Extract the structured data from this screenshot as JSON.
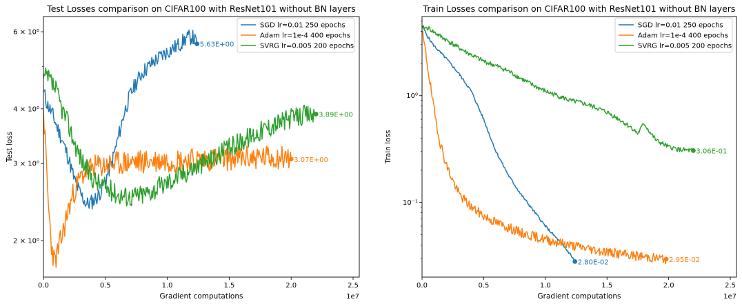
{
  "chart_data": [
    {
      "type": "line",
      "title": "Test Losses comparison on CIFAR100 with ResNet101 without BN layers",
      "xlabel": "Gradient computations",
      "ylabel": "Test loss",
      "x_offset_label": "1e7",
      "xlim": [
        0,
        25500000
      ],
      "ylim": [
        1.65,
        6.5
      ],
      "yscale": "log",
      "grid": false,
      "legend_position": "upper-right",
      "x_ticks": [
        {
          "v": 0,
          "label": "0.0"
        },
        {
          "v": 5000000,
          "label": "0.5"
        },
        {
          "v": 10000000,
          "label": "1.0"
        },
        {
          "v": 15000000,
          "label": "1.5"
        },
        {
          "v": 20000000,
          "label": "2.0"
        },
        {
          "v": 25000000,
          "label": "2.5"
        }
      ],
      "y_ticks": [
        {
          "v": 2,
          "label": "2 × 10⁰"
        },
        {
          "v": 3,
          "label": "3 × 10⁰"
        },
        {
          "v": 4,
          "label": "4 × 10⁰"
        },
        {
          "v": 6,
          "label": "6 × 10⁰"
        }
      ],
      "y_minor_ticks": [
        5
      ],
      "series": [
        {
          "name": "SGD lr=0.01 250 epochs",
          "color": "#1f77b4",
          "noise": 0.018,
          "seed": 11,
          "points": [
            [
              0,
              4.4
            ],
            [
              300000,
              4.1
            ],
            [
              700000,
              3.9
            ],
            [
              1000000,
              3.7
            ],
            [
              1500000,
              3.4
            ],
            [
              2000000,
              3.1
            ],
            [
              2500000,
              2.75
            ],
            [
              3000000,
              2.55
            ],
            [
              3500000,
              2.42
            ],
            [
              4000000,
              2.46
            ],
            [
              4500000,
              2.55
            ],
            [
              5000000,
              2.75
            ],
            [
              5500000,
              3.0
            ],
            [
              6000000,
              3.4
            ],
            [
              6500000,
              3.9
            ],
            [
              7000000,
              4.3
            ],
            [
              7500000,
              4.6
            ],
            [
              8000000,
              4.85
            ],
            [
              8500000,
              5.0
            ],
            [
              9000000,
              5.15
            ],
            [
              9500000,
              5.28
            ],
            [
              10000000,
              5.4
            ],
            [
              10500000,
              5.5
            ],
            [
              11000000,
              5.62
            ],
            [
              11500000,
              5.78
            ],
            [
              12000000,
              5.85
            ],
            [
              12400000,
              5.63
            ]
          ],
          "end_label": "5.63E+00",
          "end_value": 5.63
        },
        {
          "name": "Adam lr=1e-4 400 epochs",
          "color": "#ff7f0e",
          "noise": 0.028,
          "seed": 23,
          "points": [
            [
              0,
              4.0
            ],
            [
              200000,
              3.1
            ],
            [
              400000,
              2.4
            ],
            [
              650000,
              1.95
            ],
            [
              900000,
              1.78
            ],
            [
              1200000,
              1.9
            ],
            [
              1600000,
              2.1
            ],
            [
              2000000,
              2.35
            ],
            [
              2500000,
              2.6
            ],
            [
              3000000,
              2.78
            ],
            [
              3500000,
              2.9
            ],
            [
              4000000,
              2.94
            ],
            [
              5000000,
              2.97
            ],
            [
              6000000,
              3.0
            ],
            [
              7000000,
              3.02
            ],
            [
              8000000,
              3.03
            ],
            [
              10000000,
              3.05
            ],
            [
              12000000,
              3.06
            ],
            [
              14000000,
              3.07
            ],
            [
              16000000,
              3.09
            ],
            [
              18000000,
              3.1
            ],
            [
              19500000,
              3.1
            ],
            [
              20000000,
              3.07
            ]
          ],
          "end_label": "3.07E+00",
          "end_value": 3.07
        },
        {
          "name": "SVRG lr=0.005 200 epochs",
          "color": "#2ca02c",
          "noise": 0.024,
          "seed": 37,
          "points": [
            [
              0,
              4.7
            ],
            [
              300000,
              4.7
            ],
            [
              600000,
              4.6
            ],
            [
              1000000,
              4.4
            ],
            [
              1500000,
              4.0
            ],
            [
              2000000,
              3.7
            ],
            [
              2500000,
              3.35
            ],
            [
              3000000,
              3.1
            ],
            [
              3500000,
              2.9
            ],
            [
              4000000,
              2.78
            ],
            [
              4500000,
              2.7
            ],
            [
              5000000,
              2.65
            ],
            [
              5500000,
              2.6
            ],
            [
              6000000,
              2.55
            ],
            [
              7000000,
              2.52
            ],
            [
              8000000,
              2.55
            ],
            [
              9000000,
              2.62
            ],
            [
              10000000,
              2.72
            ],
            [
              11000000,
              2.82
            ],
            [
              12000000,
              2.92
            ],
            [
              13000000,
              3.02
            ],
            [
              14000000,
              3.12
            ],
            [
              15000000,
              3.25
            ],
            [
              16000000,
              3.38
            ],
            [
              17000000,
              3.5
            ],
            [
              18000000,
              3.62
            ],
            [
              19000000,
              3.72
            ],
            [
              20000000,
              3.8
            ],
            [
              21000000,
              3.87
            ],
            [
              22000000,
              3.89
            ]
          ],
          "end_label": "3.89E+00",
          "end_value": 3.89
        }
      ]
    },
    {
      "type": "line",
      "title": "Train Losses comparison on CIFAR100 with ResNet101 without BN layers",
      "xlabel": "Gradient computations",
      "ylabel": "Train loss",
      "x_offset_label": "1e7",
      "xlim": [
        0,
        25500000
      ],
      "ylim": [
        0.02,
        5.5
      ],
      "yscale": "log",
      "grid": false,
      "legend_position": "upper-right",
      "x_ticks": [
        {
          "v": 0,
          "label": "0.0"
        },
        {
          "v": 5000000,
          "label": "0.5"
        },
        {
          "v": 10000000,
          "label": "1.0"
        },
        {
          "v": 15000000,
          "label": "1.5"
        },
        {
          "v": 20000000,
          "label": "2.0"
        },
        {
          "v": 25000000,
          "label": "2.5"
        }
      ],
      "y_ticks": [
        {
          "v": 0.1,
          "label": "10⁻¹"
        },
        {
          "v": 1,
          "label": "10⁰"
        }
      ],
      "y_minor_ticks": [
        0.03,
        0.04,
        0.05,
        0.06,
        0.07,
        0.08,
        0.09,
        0.2,
        0.3,
        0.4,
        0.5,
        0.6,
        0.7,
        0.8,
        0.9,
        2,
        3,
        4,
        5
      ],
      "series": [
        {
          "name": "SGD lr=0.01 250 epochs",
          "color": "#1f77b4",
          "noise": 0.012,
          "seed": 5,
          "points": [
            [
              0,
              4.5
            ],
            [
              500000,
              3.5
            ],
            [
              1000000,
              2.9
            ],
            [
              2000000,
              2.2
            ],
            [
              3000000,
              1.6
            ],
            [
              4000000,
              1.1
            ],
            [
              5000000,
              0.6
            ],
            [
              5500000,
              0.42
            ],
            [
              6000000,
              0.3
            ],
            [
              7000000,
              0.18
            ],
            [
              8000000,
              0.12
            ],
            [
              9000000,
              0.085
            ],
            [
              10000000,
              0.06
            ],
            [
              11000000,
              0.045
            ],
            [
              12000000,
              0.033
            ],
            [
              12400000,
              0.028
            ]
          ],
          "end_label": "2.80E-02",
          "end_value": 0.028
        },
        {
          "name": "Adam lr=1e-4 400 epochs",
          "color": "#ff7f0e",
          "noise": 0.045,
          "seed": 19,
          "points": [
            [
              0,
              4.0
            ],
            [
              300000,
              2.5
            ],
            [
              700000,
              1.2
            ],
            [
              1000000,
              0.7
            ],
            [
              1500000,
              0.35
            ],
            [
              2000000,
              0.22
            ],
            [
              2500000,
              0.16
            ],
            [
              3000000,
              0.12
            ],
            [
              4000000,
              0.09
            ],
            [
              5000000,
              0.075
            ],
            [
              6000000,
              0.065
            ],
            [
              8000000,
              0.052
            ],
            [
              10000000,
              0.045
            ],
            [
              12000000,
              0.04
            ],
            [
              14000000,
              0.036
            ],
            [
              16000000,
              0.033
            ],
            [
              18000000,
              0.031
            ],
            [
              19800000,
              0.0295
            ]
          ],
          "end_label": "2.95E-02",
          "end_value": 0.0295
        },
        {
          "name": "SVRG lr=0.005 200 epochs",
          "color": "#2ca02c",
          "noise": 0.022,
          "seed": 41,
          "points": [
            [
              0,
              4.3
            ],
            [
              500000,
              4.3
            ],
            [
              1000000,
              3.9
            ],
            [
              2000000,
              3.3
            ],
            [
              3000000,
              2.8
            ],
            [
              4000000,
              2.4
            ],
            [
              5000000,
              2.1
            ],
            [
              6000000,
              1.9
            ],
            [
              7000000,
              1.7
            ],
            [
              8000000,
              1.45
            ],
            [
              9000000,
              1.25
            ],
            [
              10000000,
              1.1
            ],
            [
              11000000,
              1.0
            ],
            [
              12000000,
              0.9
            ],
            [
              13000000,
              0.85
            ],
            [
              14000000,
              0.78
            ],
            [
              15000000,
              0.7
            ],
            [
              16000000,
              0.6
            ],
            [
              17000000,
              0.5
            ],
            [
              17500000,
              0.44
            ],
            [
              18000000,
              0.55
            ],
            [
              18500000,
              0.45
            ],
            [
              19000000,
              0.38
            ],
            [
              20000000,
              0.33
            ],
            [
              21000000,
              0.31
            ],
            [
              22000000,
              0.306
            ]
          ],
          "end_label": "3.06E-01",
          "end_value": 0.306
        }
      ]
    }
  ]
}
